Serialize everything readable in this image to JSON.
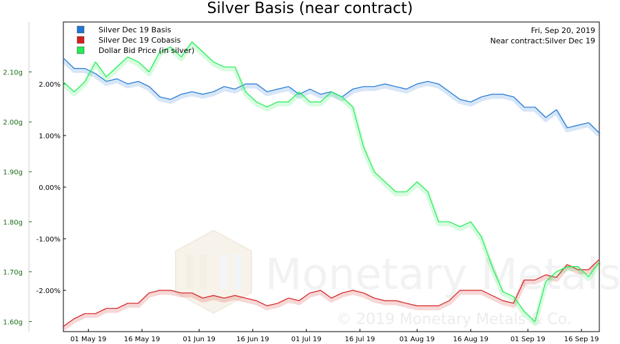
{
  "chart_data": {
    "type": "line",
    "title": "Silver Basis (near contract)",
    "info": {
      "date": "Fri, Sep 20, 2019",
      "contract": "Near contract:Silver Dec 19"
    },
    "watermark": {
      "brand": "Monetary Metals",
      "copyright": "© 2019 Monetary Metals & Co."
    },
    "x_range": [
      "2019-04-24",
      "2019-09-21"
    ],
    "x_ticks": [
      "01 May 19",
      "16 May 19",
      "01 Jun 19",
      "16 Jun 19",
      "01 Jul 19",
      "16 Jul 19",
      "01 Aug 19",
      "16 Aug 19",
      "01 Sep 19",
      "16 Sep 19"
    ],
    "x_tick_dates": [
      "2019-05-01",
      "2019-05-16",
      "2019-06-01",
      "2019-06-16",
      "2019-07-01",
      "2019-07-16",
      "2019-08-01",
      "2019-08-16",
      "2019-09-01",
      "2019-09-16"
    ],
    "y_left": {
      "range": [
        1.58,
        2.2
      ],
      "ticks": [
        "2.10g",
        "2.00g",
        "1.90g",
        "1.80g",
        "1.70g",
        "1.60g"
      ],
      "tick_values": [
        2.1,
        2.0,
        1.9,
        1.8,
        1.7,
        1.6
      ]
    },
    "y_right": {
      "range": [
        -2.8,
        3.2
      ],
      "ticks": [
        "2.00%",
        "1.00%",
        "0.00%",
        "-1.00%",
        "-2.00%"
      ],
      "tick_values": [
        2.0,
        1.0,
        0.0,
        -1.0,
        -2.0
      ]
    },
    "legend_position": "top-left",
    "grid": false,
    "series": [
      {
        "name": "Silver Dec 19 Basis",
        "color": "#1f77d4",
        "axis": "right",
        "x": [
          "2019-04-24",
          "2019-04-27",
          "2019-04-30",
          "2019-05-03",
          "2019-05-06",
          "2019-05-09",
          "2019-05-12",
          "2019-05-15",
          "2019-05-18",
          "2019-05-21",
          "2019-05-24",
          "2019-05-27",
          "2019-05-30",
          "2019-06-02",
          "2019-06-05",
          "2019-06-08",
          "2019-06-11",
          "2019-06-14",
          "2019-06-17",
          "2019-06-20",
          "2019-06-23",
          "2019-06-26",
          "2019-06-29",
          "2019-07-02",
          "2019-07-05",
          "2019-07-08",
          "2019-07-11",
          "2019-07-14",
          "2019-07-17",
          "2019-07-20",
          "2019-07-23",
          "2019-07-26",
          "2019-07-29",
          "2019-08-01",
          "2019-08-04",
          "2019-08-07",
          "2019-08-10",
          "2019-08-13",
          "2019-08-16",
          "2019-08-19",
          "2019-08-22",
          "2019-08-25",
          "2019-08-28",
          "2019-08-31",
          "2019-09-03",
          "2019-09-06",
          "2019-09-09",
          "2019-09-12",
          "2019-09-15",
          "2019-09-18",
          "2019-09-21"
        ],
        "values": [
          2.5,
          2.3,
          2.3,
          2.2,
          2.05,
          2.1,
          2.0,
          2.05,
          1.95,
          1.75,
          1.7,
          1.8,
          1.85,
          1.8,
          1.85,
          1.95,
          1.9,
          2.0,
          2.0,
          1.85,
          1.9,
          1.95,
          1.8,
          1.9,
          1.8,
          1.85,
          1.75,
          1.9,
          1.95,
          1.95,
          2.0,
          1.95,
          1.9,
          2.0,
          2.05,
          2.0,
          1.85,
          1.7,
          1.65,
          1.75,
          1.8,
          1.8,
          1.75,
          1.55,
          1.55,
          1.35,
          1.5,
          1.15,
          1.2,
          1.25,
          1.05
        ]
      },
      {
        "name": "Silver Dec 19 Cobasis",
        "color": "#d42020",
        "axis": "right",
        "x": [
          "2019-04-24",
          "2019-04-27",
          "2019-04-30",
          "2019-05-03",
          "2019-05-06",
          "2019-05-09",
          "2019-05-12",
          "2019-05-15",
          "2019-05-18",
          "2019-05-21",
          "2019-05-24",
          "2019-05-27",
          "2019-05-30",
          "2019-06-02",
          "2019-06-05",
          "2019-06-08",
          "2019-06-11",
          "2019-06-14",
          "2019-06-17",
          "2019-06-20",
          "2019-06-23",
          "2019-06-26",
          "2019-06-29",
          "2019-07-02",
          "2019-07-05",
          "2019-07-08",
          "2019-07-11",
          "2019-07-14",
          "2019-07-17",
          "2019-07-20",
          "2019-07-23",
          "2019-07-26",
          "2019-07-29",
          "2019-08-01",
          "2019-08-04",
          "2019-08-07",
          "2019-08-10",
          "2019-08-13",
          "2019-08-16",
          "2019-08-19",
          "2019-08-22",
          "2019-08-25",
          "2019-08-28",
          "2019-08-31",
          "2019-09-03",
          "2019-09-06",
          "2019-09-09",
          "2019-09-12",
          "2019-09-15",
          "2019-09-18",
          "2019-09-21"
        ],
        "values": [
          -2.7,
          -2.55,
          -2.45,
          -2.45,
          -2.35,
          -2.35,
          -2.25,
          -2.25,
          -2.05,
          -2.0,
          -2.0,
          -2.05,
          -2.05,
          -2.15,
          -2.1,
          -2.15,
          -2.1,
          -2.15,
          -2.2,
          -2.3,
          -2.25,
          -2.15,
          -2.2,
          -2.05,
          -2.0,
          -2.15,
          -2.05,
          -2.0,
          -2.05,
          -2.15,
          -2.2,
          -2.2,
          -2.25,
          -2.3,
          -2.3,
          -2.3,
          -2.2,
          -2.0,
          -2.0,
          -2.0,
          -2.1,
          -2.2,
          -2.25,
          -1.8,
          -1.8,
          -1.7,
          -1.75,
          -1.5,
          -1.6,
          -1.6,
          -1.4
        ]
      },
      {
        "name": "Dollar Bid Price (in silver)",
        "color": "#22ee55",
        "axis": "left",
        "x": [
          "2019-04-24",
          "2019-04-27",
          "2019-04-30",
          "2019-05-03",
          "2019-05-06",
          "2019-05-09",
          "2019-05-12",
          "2019-05-15",
          "2019-05-18",
          "2019-05-21",
          "2019-05-24",
          "2019-05-27",
          "2019-05-30",
          "2019-06-02",
          "2019-06-05",
          "2019-06-08",
          "2019-06-11",
          "2019-06-14",
          "2019-06-17",
          "2019-06-20",
          "2019-06-23",
          "2019-06-26",
          "2019-06-29",
          "2019-07-02",
          "2019-07-05",
          "2019-07-08",
          "2019-07-11",
          "2019-07-14",
          "2019-07-17",
          "2019-07-20",
          "2019-07-23",
          "2019-07-26",
          "2019-07-29",
          "2019-08-01",
          "2019-08-04",
          "2019-08-07",
          "2019-08-10",
          "2019-08-13",
          "2019-08-16",
          "2019-08-19",
          "2019-08-22",
          "2019-08-25",
          "2019-08-28",
          "2019-08-31",
          "2019-09-03",
          "2019-09-06",
          "2019-09-09",
          "2019-09-12",
          "2019-09-15",
          "2019-09-18",
          "2019-09-21"
        ],
        "values": [
          2.08,
          2.06,
          2.08,
          2.12,
          2.09,
          2.11,
          2.13,
          2.12,
          2.1,
          2.14,
          2.15,
          2.13,
          2.16,
          2.14,
          2.12,
          2.11,
          2.11,
          2.06,
          2.04,
          2.03,
          2.04,
          2.04,
          2.06,
          2.04,
          2.04,
          2.06,
          2.05,
          2.03,
          1.95,
          1.9,
          1.88,
          1.86,
          1.86,
          1.88,
          1.86,
          1.8,
          1.8,
          1.79,
          1.8,
          1.77,
          1.71,
          1.66,
          1.65,
          1.62,
          1.6,
          1.68,
          1.7,
          1.71,
          1.71,
          1.69,
          1.72
        ]
      }
    ]
  }
}
